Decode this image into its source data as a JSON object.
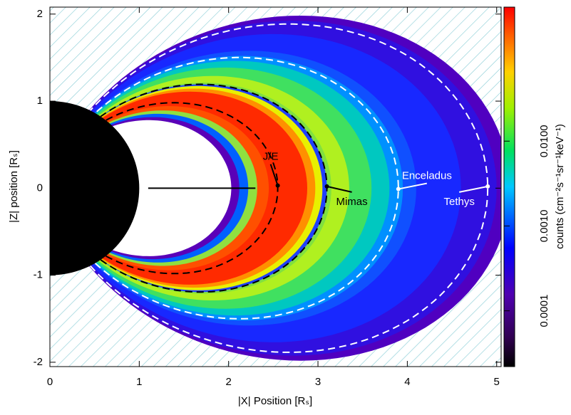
{
  "chart_data": {
    "type": "heatmap",
    "xlabel": "|X| Position [Rₛ]",
    "ylabel": "|Z| position [Rₛ]",
    "xlim": [
      0,
      5.05
    ],
    "xticks": [
      0,
      1,
      2,
      3,
      4,
      5
    ],
    "ylim": [
      -2.05,
      2.08
    ],
    "yticks": [
      -2,
      -1,
      0,
      1,
      2
    ],
    "colorbar": {
      "label": "counts (cm⁻²s⁻¹sr⁻¹keV⁻¹)",
      "log": true,
      "lim": [
        2.2e-05,
        0.38
      ],
      "ticks": [
        0.0001,
        {
          "value": 0.001,
          "label": "0.0010"
        },
        {
          "value": 0.01,
          "label": "0.0100"
        }
      ]
    },
    "annotations": [
      {
        "text": "J/E",
        "x": 2.55,
        "y": 0.03,
        "color": "#000000"
      },
      {
        "text": "Mimas",
        "x": 3.1,
        "y": 0.02,
        "color": "#000000"
      },
      {
        "text": "Enceladus",
        "x": 3.9,
        "y": -0.01,
        "color": "#ffffff"
      },
      {
        "text": "Tethys",
        "x": 4.9,
        "y": 0.02,
        "color": "#ffffff"
      }
    ]
  }
}
